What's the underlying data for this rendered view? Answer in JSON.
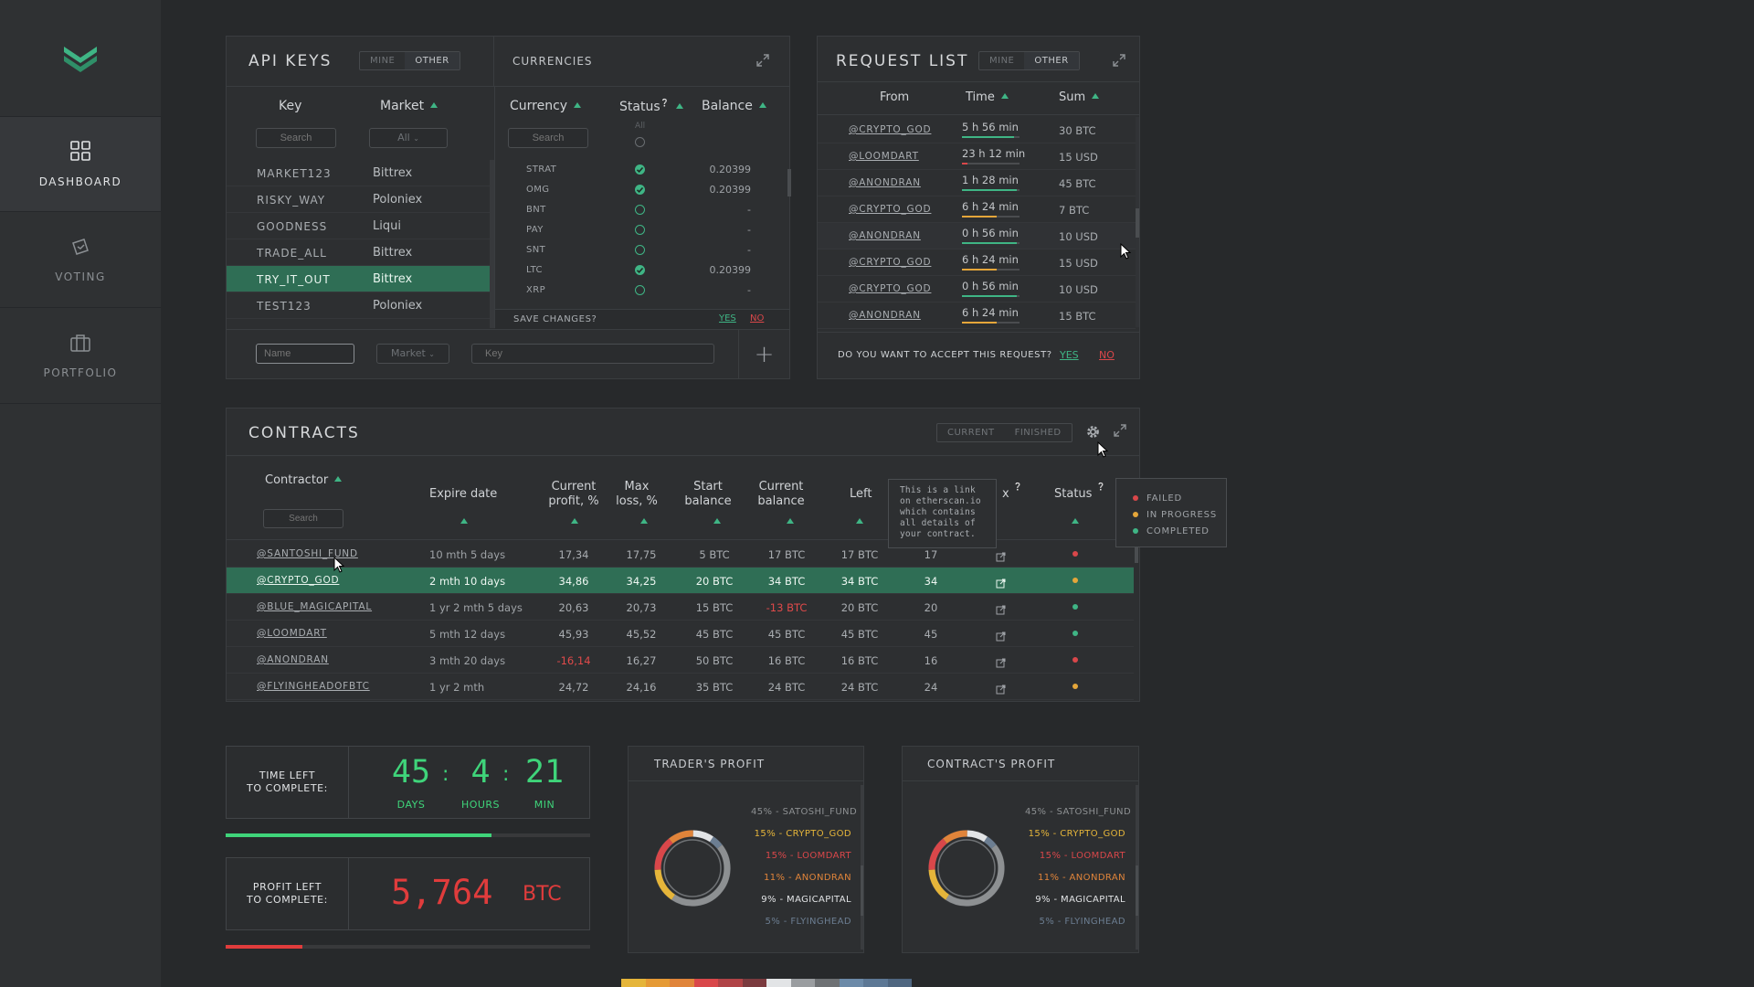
{
  "sidebar": {
    "items": [
      {
        "label": "DASHBOARD",
        "icon": "grid-icon",
        "active": true
      },
      {
        "label": "VOTING",
        "icon": "ballot-icon",
        "active": false
      },
      {
        "label": "PORTFOLIO",
        "icon": "briefcase-icon",
        "active": false
      }
    ]
  },
  "api_keys": {
    "title": "API KEYS",
    "toggle": [
      "MINE",
      "OTHER"
    ],
    "col_key": "Key",
    "col_market": "Market",
    "search_placeholder": "Search",
    "market_filter": "All",
    "rows": [
      {
        "key": "MARKET123",
        "market": "Bittrex"
      },
      {
        "key": "RISKY_WAY",
        "market": "Poloniex"
      },
      {
        "key": "GOODNESS",
        "market": "Liqui"
      },
      {
        "key": "TRADE_ALL",
        "market": "Bittrex"
      },
      {
        "key": "TRY_IT_OUT",
        "market": "Bittrex"
      },
      {
        "key": "TEST123",
        "market": "Poloniex"
      }
    ],
    "name_placeholder": "Name",
    "market_placeholder": "Market",
    "key_placeholder": "Key"
  },
  "currencies": {
    "title": "CURRENCIES",
    "col_currency": "Currency",
    "col_status": "Status",
    "col_balance": "Balance",
    "search_placeholder": "Search",
    "status_filter": "All",
    "rows": [
      {
        "code": "STRAT",
        "checked": true,
        "balance": "0.20399"
      },
      {
        "code": "OMG",
        "checked": true,
        "balance": "0.20399"
      },
      {
        "code": "BNT",
        "checked": false,
        "balance": "-"
      },
      {
        "code": "PAY",
        "checked": false,
        "balance": "-"
      },
      {
        "code": "SNT",
        "checked": false,
        "balance": "-"
      },
      {
        "code": "LTC",
        "checked": true,
        "balance": "0.20399"
      },
      {
        "code": "XRP",
        "checked": false,
        "balance": "-"
      }
    ],
    "save_question": "SAVE CHANGES?",
    "yes": "YES",
    "no": "NO"
  },
  "request_list": {
    "title": "REQUEST LIST",
    "toggle": [
      "MINE",
      "OTHER"
    ],
    "col_from": "From",
    "col_time": "Time",
    "col_sum": "Sum",
    "rows": [
      {
        "from": "@CRYPTO_GOD",
        "time": "5 h 56 min",
        "sum": "30 BTC",
        "progress": 0.9,
        "color": "#3fb585"
      },
      {
        "from": "@LOOMDART",
        "time": "23 h 12 min",
        "sum": "15 USD",
        "progress": 0.1,
        "color": "#d9474a"
      },
      {
        "from": "@ANONDRAN",
        "time": "1 h 28 min",
        "sum": "45 BTC",
        "progress": 0.95,
        "color": "#3fb585"
      },
      {
        "from": "@CRYPTO_GOD",
        "time": "6 h 24 min",
        "sum": "7 BTC",
        "progress": 0.6,
        "color": "#e5a63a"
      },
      {
        "from": "@ANONDRAN",
        "time": "0 h 56 min",
        "sum": "10 USD",
        "progress": 0.95,
        "color": "#3fb585"
      },
      {
        "from": "@CRYPTO_GOD",
        "time": "6 h 24 min",
        "sum": "15 USD",
        "progress": 0.6,
        "color": "#e5a63a"
      },
      {
        "from": "@CRYPTO_GOD",
        "time": "0 h 56 min",
        "sum": "10 USD",
        "progress": 0.95,
        "color": "#3fb585"
      },
      {
        "from": "@ANONDRAN",
        "time": "6 h 24 min",
        "sum": "15 BTC",
        "progress": 0.6,
        "color": "#e5a63a"
      }
    ],
    "question": "DO YOU WANT TO ACCEPT THIS REQUEST?",
    "yes": "YES",
    "no": "NO"
  },
  "contracts": {
    "title": "CONTRACTS",
    "toggle": [
      "CURRENT",
      "FINISHED"
    ],
    "headers": {
      "contractor": "Contractor",
      "expire": "Expire date",
      "cur_profit": [
        "Current",
        "profit, %"
      ],
      "max_loss": [
        "Max",
        "loss, %"
      ],
      "start_balance": [
        "Start",
        "balance"
      ],
      "current_balance": [
        "Current",
        "balance"
      ],
      "left": "Left",
      "tx": "x",
      "status": "Status"
    },
    "search_placeholder": "Search",
    "tooltip": "This is a link on etherscan.io which contains all details of your contract.",
    "status_legend": [
      {
        "label": "FAILED",
        "color": "#d9474a"
      },
      {
        "label": "IN PROGRESS",
        "color": "#e5a63a"
      },
      {
        "label": "COMPLETED",
        "color": "#3fb585"
      }
    ],
    "rows": [
      {
        "name": "@SANTOSHI_FUND",
        "expire": "10 mth 5 days",
        "cur": "17,34",
        "cur_neg": false,
        "max": "17,75",
        "start": "5 BTC",
        "current": "17 BTC",
        "current_neg": false,
        "left": "17 BTC",
        "num": "17",
        "status": "#d9474a"
      },
      {
        "name": "@CRYPTO_GOD",
        "expire": "2 mth 10 days",
        "cur": "34,86",
        "cur_neg": false,
        "max": "34,25",
        "start": "20 BTC",
        "current": "34 BTC",
        "current_neg": false,
        "left": "34 BTC",
        "num": "34",
        "status": "#e5a63a"
      },
      {
        "name": "@BLUE_MAGICAPITAL",
        "expire": "1 yr 2 mth 5 days",
        "cur": "20,63",
        "cur_neg": false,
        "max": "20,73",
        "start": "15 BTC",
        "current": "-13 BTC",
        "current_neg": true,
        "left": "20 BTC",
        "num": "20",
        "status": "#3fb585"
      },
      {
        "name": "@LOOMDART",
        "expire": "5 mth 12 days",
        "cur": "45,93",
        "cur_neg": false,
        "max": "45,52",
        "start": "45 BTC",
        "current": "45 BTC",
        "current_neg": false,
        "left": "45 BTC",
        "num": "45",
        "status": "#3fb585"
      },
      {
        "name": "@ANONDRAN",
        "expire": "3 mth 20 days",
        "cur": "-16,14",
        "cur_neg": true,
        "max": "16,27",
        "start": "50 BTC",
        "current": "16 BTC",
        "current_neg": false,
        "left": "16 BTC",
        "num": "16",
        "status": "#d9474a"
      },
      {
        "name": "@FLYINGHEADOFBTC",
        "expire": "1 yr 2 mth",
        "cur": "24,72",
        "cur_neg": false,
        "max": "24,16",
        "start": "35 BTC",
        "current": "24 BTC",
        "current_neg": false,
        "left": "24 BTC",
        "num": "24",
        "status": "#e5a63a"
      }
    ]
  },
  "time_left": {
    "label": [
      "TIME LEFT",
      "TO COMPLETE:"
    ],
    "days": "45",
    "hours": "4",
    "min": "21",
    "days_label": "DAYS",
    "hours_label": "HOURS",
    "min_label": "MIN",
    "progress": 0.73
  },
  "profit_left": {
    "label": [
      "PROFIT LEFT",
      "TO COMPLETE:"
    ],
    "value": "5,764",
    "unit": "BTC",
    "progress": 0.21
  },
  "traders_profit": {
    "title": "TRADER'S PROFIT",
    "slices": [
      {
        "label": "45% - SATOSHI_FUND",
        "value": 45,
        "color": "#8d9092"
      },
      {
        "label": "15% - CRYPTO_GOD",
        "value": 15,
        "color": "#e5b53a"
      },
      {
        "label": "15% - LOOMDART",
        "value": 15,
        "color": "#d9474a"
      },
      {
        "label": "11% - ANONDRAN",
        "value": 11,
        "color": "#e0843a"
      },
      {
        "label": "9% - MAGICAPITAL",
        "value": 9,
        "color": "#e2e4e6"
      },
      {
        "label": "5% - FLYINGHEAD",
        "value": 5,
        "color": "#6c7e92"
      }
    ]
  },
  "contracts_profit": {
    "title": "CONTRACT'S PROFIT",
    "slices": [
      {
        "label": "45% - SATOSHI_FUND",
        "value": 45,
        "color": "#8d9092"
      },
      {
        "label": "15% - CRYPTO_GOD",
        "value": 15,
        "color": "#e5b53a"
      },
      {
        "label": "15% - LOOMDART",
        "value": 15,
        "color": "#d9474a"
      },
      {
        "label": "11% - ANONDRAN",
        "value": 11,
        "color": "#e0843a"
      },
      {
        "label": "9% - MAGICAPITAL",
        "value": 9,
        "color": "#e2e4e6"
      },
      {
        "label": "5% - FLYINGHEAD",
        "value": 5,
        "color": "#6c7e92"
      }
    ]
  },
  "palette": [
    "#e5b53a",
    "#e59a35",
    "#e0843a",
    "#d9474a",
    "#b04346",
    "#7a3a3e",
    "#e2e4e6",
    "#9a9da0",
    "#6e7174",
    "#6c8aa8",
    "#5d7895",
    "#4f6680"
  ]
}
